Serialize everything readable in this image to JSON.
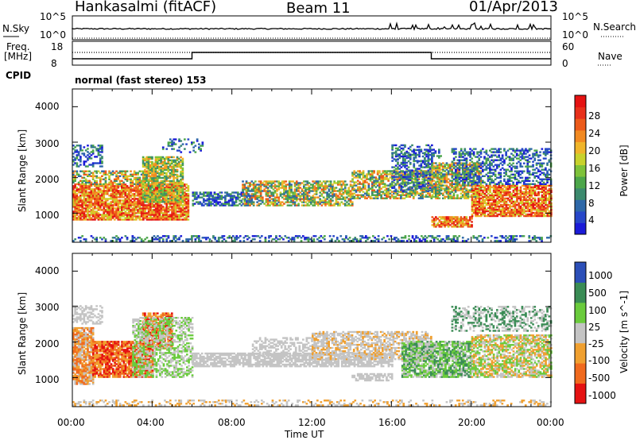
{
  "header": {
    "station": "Hankasalmi (fitACF)",
    "beam": "Beam 11",
    "date": "01/Apr/2013"
  },
  "top_panels": {
    "nsky_label": "N.Sky",
    "nsearch_label": "N.Search",
    "left_ticks": [
      "10^5",
      "10^0"
    ],
    "right_ticks": [
      "10^5",
      "10^0"
    ],
    "freq_label_1": "Freq.",
    "freq_label_2": "[MHz]",
    "freq_ticks": [
      "18",
      "8"
    ],
    "nave_ticks": [
      "60",
      "0"
    ],
    "nave_label": "Nave",
    "cpid_label": "CPID",
    "cpid_text": "normal (fast stereo) 153"
  },
  "colors": {
    "power": [
      "#1b1bd8",
      "#2747c9",
      "#2e68a8",
      "#3c8a6e",
      "#4ca64a",
      "#7ec23a",
      "#c8d22c",
      "#f0b52a",
      "#f28a22",
      "#ec5a1a",
      "#e8301a",
      "#e51212"
    ],
    "velocity": {
      "neg_fast": "#e51212",
      "neg_mid": "#f06a1e",
      "neg_slow": "#f0a030",
      "zero": "#c4c4c4",
      "pos_slow": "#6acb3c",
      "pos_mid": "#3a8c55",
      "pos_fast": "#2c4fb8"
    }
  },
  "chart_data": [
    {
      "type": "heatmap",
      "title": "",
      "xlabel": "",
      "ylabel": "Slant Range [km]",
      "x_ticks": [
        "00:00",
        "04:00",
        "08:00",
        "12:00",
        "16:00",
        "20:00",
        "00:00"
      ],
      "xlim": [
        0,
        24
      ],
      "ylim": [
        180,
        4500
      ],
      "y_ticks": [
        "4000",
        "3000",
        "2000",
        "1000"
      ],
      "colorbar": {
        "label": "Power [dB]",
        "ticks": [
          "28",
          "24",
          "20",
          "16",
          "12",
          "8",
          "4"
        ],
        "range": [
          0,
          30
        ]
      }
    },
    {
      "type": "heatmap",
      "title": "",
      "xlabel": "Time UT",
      "ylabel": "Slant Range [km]",
      "x_ticks": [
        "00:00",
        "04:00",
        "08:00",
        "12:00",
        "16:00",
        "20:00",
        "00:00"
      ],
      "xlim": [
        0,
        24
      ],
      "ylim": [
        180,
        4500
      ],
      "y_ticks": [
        "4000",
        "3000",
        "2000",
        "1000"
      ],
      "colorbar": {
        "label": "Velocity [m s^-1]",
        "ticks": [
          "1000",
          "500",
          "100",
          "25",
          "-25",
          "-100",
          "-500",
          "-1000"
        ]
      }
    }
  ]
}
